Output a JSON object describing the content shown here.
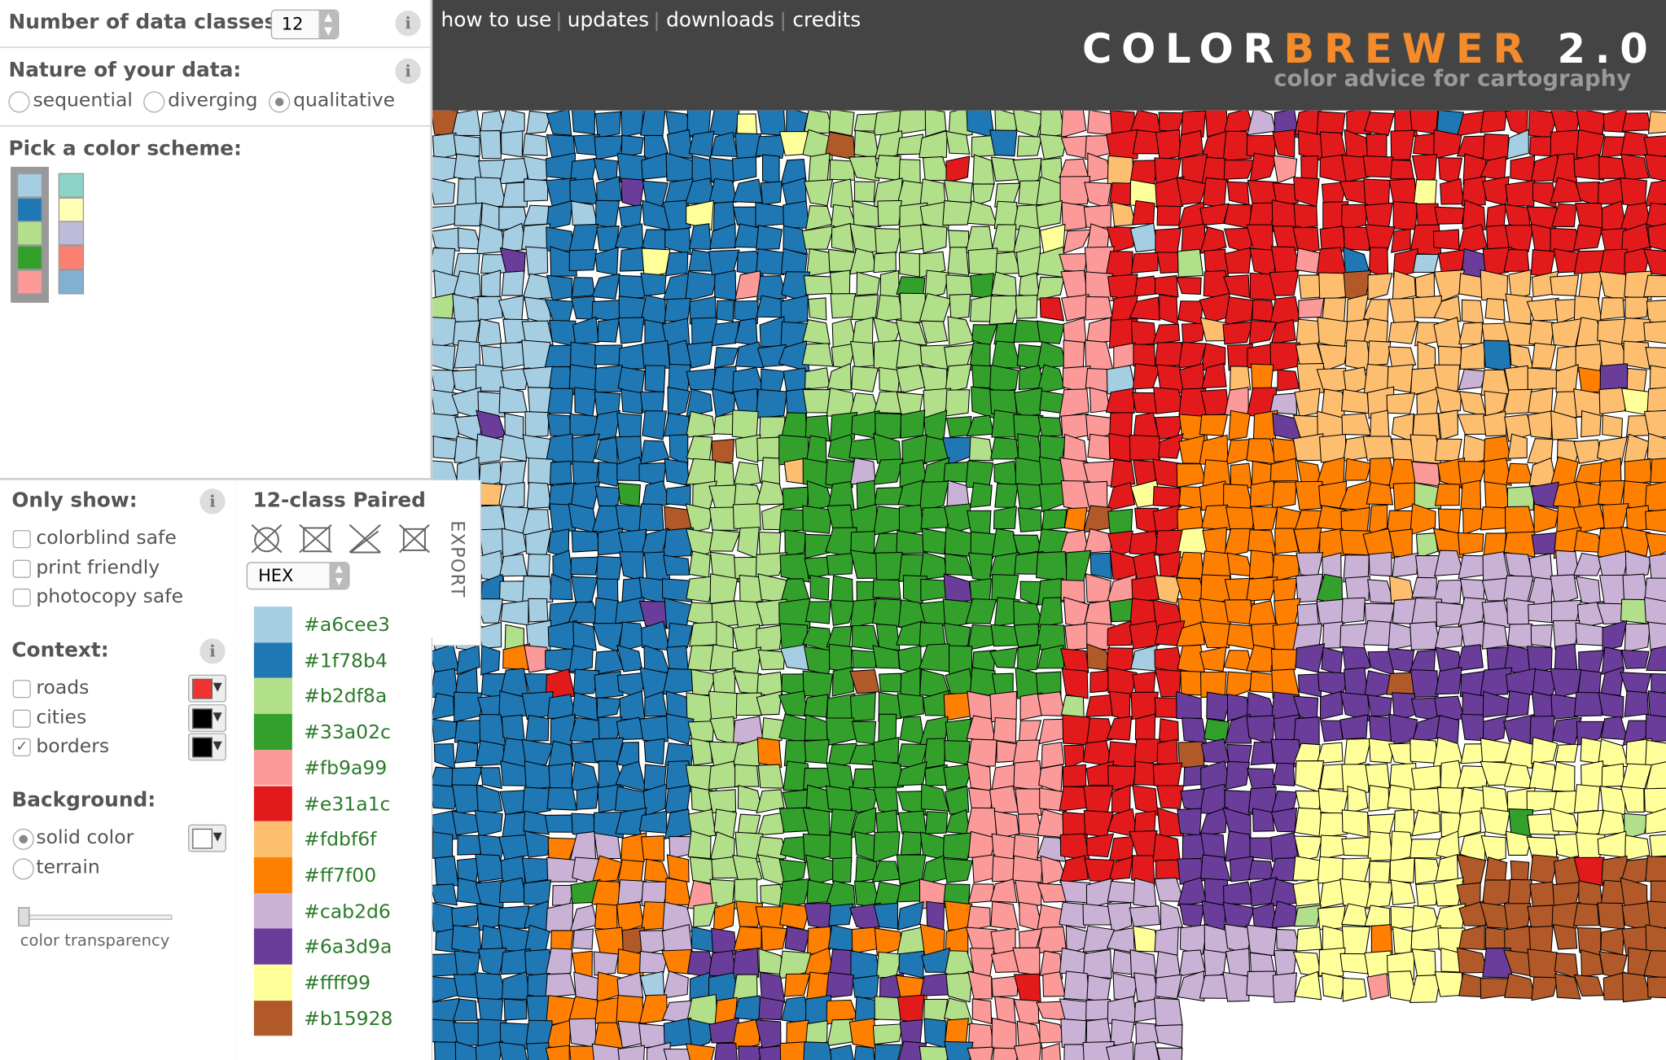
{
  "header": {
    "nav": [
      "how to use",
      "updates",
      "downloads",
      "credits"
    ],
    "logo": {
      "first": "COLOR",
      "second": "BREWER",
      "version": "2.0"
    },
    "tagline": "color advice for cartography"
  },
  "info_icon": "i",
  "controls": {
    "classes_label": "Number of data classes:",
    "classes_value": "12",
    "nature_label": "Nature of your data:",
    "nature_options": [
      "sequential",
      "diverging",
      "qualitative"
    ],
    "nature_selected": 2,
    "scheme_label": "Pick a color scheme:"
  },
  "filters": {
    "label": "Only show:",
    "options": [
      "colorblind safe",
      "print friendly",
      "photocopy safe"
    ]
  },
  "context": {
    "label": "Context:",
    "options": [
      {
        "label": "roads",
        "checked": false,
        "color": "#ee3333"
      },
      {
        "label": "cities",
        "checked": false,
        "color": "#000000"
      },
      {
        "label": "borders",
        "checked": true,
        "color": "#000000"
      }
    ]
  },
  "background": {
    "label": "Background:",
    "options": [
      "solid color",
      "terrain"
    ],
    "selected": 0,
    "color": "#ffffff",
    "slider_label": "color transparency"
  },
  "scheme": {
    "title": "12-class Paired",
    "format": "HEX",
    "export": "EXPORT",
    "colors": [
      "#a6cee3",
      "#1f78b4",
      "#b2df8a",
      "#33a02c",
      "#fb9a99",
      "#e31a1c",
      "#fdbf6f",
      "#ff7f00",
      "#cab2d6",
      "#6a3d9a",
      "#ffff99",
      "#b15928"
    ]
  }
}
